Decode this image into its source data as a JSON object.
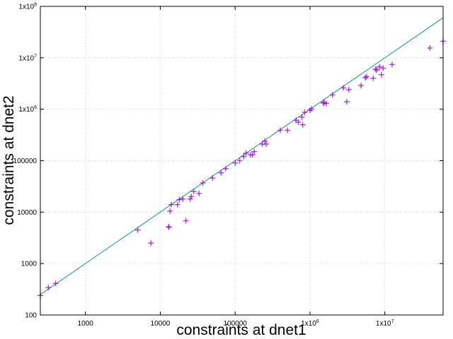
{
  "chart_data": {
    "type": "scatter",
    "xlabel": "constraints at dnet1",
    "ylabel": "constraints at dnet2",
    "xscale": "log",
    "yscale": "log",
    "xlim": [
      250,
      60000000
    ],
    "ylim": [
      100,
      100000000
    ],
    "grid": true,
    "marker": "plus",
    "colors": {
      "points": "#9400d3",
      "line": "#009e73"
    },
    "x_ticks": [
      {
        "value": 1000,
        "base": "1000",
        "exp": ""
      },
      {
        "value": 10000,
        "base": "10000",
        "exp": ""
      },
      {
        "value": 100000,
        "base": "100000",
        "exp": ""
      },
      {
        "value": 1000000,
        "base": "1x10",
        "exp": "6"
      },
      {
        "value": 10000000,
        "base": "1x10",
        "exp": "7"
      }
    ],
    "y_ticks": [
      {
        "value": 100,
        "base": "100",
        "exp": ""
      },
      {
        "value": 1000,
        "base": "1000",
        "exp": ""
      },
      {
        "value": 10000,
        "base": "10000",
        "exp": ""
      },
      {
        "value": 100000,
        "base": "100000",
        "exp": ""
      },
      {
        "value": 1000000,
        "base": "1x10",
        "exp": "6"
      },
      {
        "value": 10000000,
        "base": "1x10",
        "exp": "7"
      },
      {
        "value": 100000000,
        "base": "1x10",
        "exp": "8"
      }
    ],
    "reference_line": {
      "x": [
        250,
        60000000
      ],
      "y": [
        250,
        60000000
      ]
    },
    "points": [
      [
        250,
        240
      ],
      [
        320,
        340
      ],
      [
        400,
        410
      ],
      [
        5000,
        4500
      ],
      [
        7500,
        2500
      ],
      [
        13000,
        5200
      ],
      [
        13500,
        10500
      ],
      [
        14000,
        14000
      ],
      [
        17000,
        14000
      ],
      [
        18000,
        17500
      ],
      [
        20000,
        18000
      ],
      [
        22000,
        6800
      ],
      [
        25000,
        18000
      ],
      [
        26000,
        20000
      ],
      [
        28000,
        25000
      ],
      [
        33000,
        23000
      ],
      [
        37000,
        37000
      ],
      [
        50000,
        46000
      ],
      [
        65000,
        58000
      ],
      [
        75000,
        70000
      ],
      [
        100000,
        90000
      ],
      [
        115000,
        100000
      ],
      [
        130000,
        120000
      ],
      [
        140000,
        140000
      ],
      [
        160000,
        130000
      ],
      [
        170000,
        130000
      ],
      [
        180000,
        150000
      ],
      [
        230000,
        210000
      ],
      [
        250000,
        240000
      ],
      [
        260000,
        210000
      ],
      [
        400000,
        390000
      ],
      [
        500000,
        390000
      ],
      [
        650000,
        610000
      ],
      [
        700000,
        560000
      ],
      [
        780000,
        700000
      ],
      [
        800000,
        500000
      ],
      [
        850000,
        870000
      ],
      [
        1000000,
        950000
      ],
      [
        1050000,
        1020000
      ],
      [
        1500000,
        1320000
      ],
      [
        1550000,
        1350000
      ],
      [
        1650000,
        1300000
      ],
      [
        2000000,
        1900000
      ],
      [
        2800000,
        2600000
      ],
      [
        3100000,
        1400000
      ],
      [
        3300000,
        2400000
      ],
      [
        4800000,
        2900000
      ],
      [
        5500000,
        4100000
      ],
      [
        5700000,
        4300000
      ],
      [
        7000000,
        4000000
      ],
      [
        7500000,
        6000000
      ],
      [
        7800000,
        5800000
      ],
      [
        8500000,
        6700000
      ],
      [
        9000000,
        4700000
      ],
      [
        9500000,
        6300000
      ],
      [
        12500000,
        7400000
      ],
      [
        13000,
        5100
      ],
      [
        40000000,
        15500000
      ],
      [
        60000000,
        21000000
      ]
    ]
  }
}
